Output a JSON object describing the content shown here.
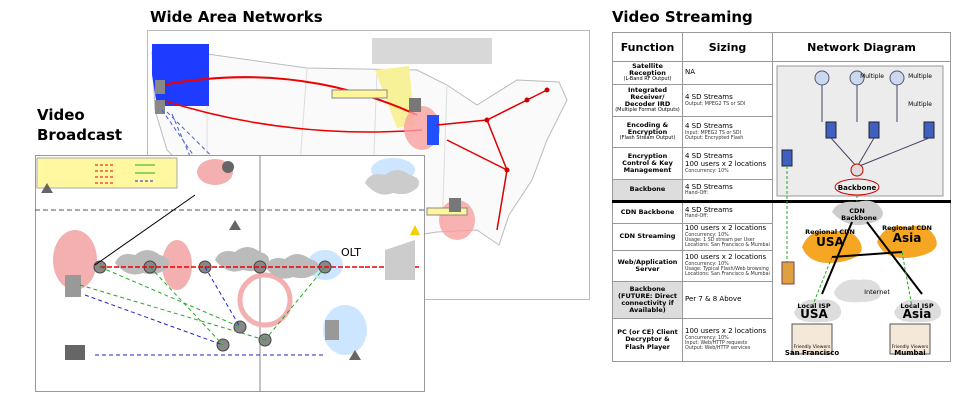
{
  "titles": {
    "wide_area_networks": "Wide Area Networks",
    "video_streaming": "Video Streaming",
    "video_broadcast": [
      "Video",
      "Broadcast"
    ]
  },
  "broadcast_diagram": {
    "labels": [
      "OLT"
    ]
  },
  "streaming_table": {
    "headers": [
      "Function",
      "Sizing",
      "Network Diagram"
    ],
    "rows": [
      {
        "function": "Satellite Reception",
        "note": "(L-Band RF Output)",
        "sizing": [
          "NA"
        ]
      },
      {
        "function": "Integrated Receiver/ Decoder IRD",
        "note": "(Multiple Format Outputs)",
        "sizing": [
          "4 SD Streams"
        ],
        "details": [
          "Output: MPEG2 TS or SDI"
        ]
      },
      {
        "function": "Encoding & Encryption",
        "note": "(Flash Stream Output)",
        "sizing": [
          "4 SD Streams"
        ],
        "details": [
          "Input: MPEG2 TS or SDI",
          "Output: Encrypted Flash"
        ]
      },
      {
        "function": "Encryption Control & Key Management",
        "sizing": [
          "4 SD Streams",
          "100 users x 2 locations"
        ],
        "details": [
          "Concurrency: 10%"
        ]
      },
      {
        "function": "Backbone",
        "sizing": [
          "4 SD Streams"
        ],
        "details": [
          "Hand-Off:"
        ]
      },
      {
        "function": "CDN Backbone",
        "sizing": [
          "4 SD Streams"
        ],
        "details": [
          "Hand-Off:"
        ]
      },
      {
        "function": "CDN Streaming",
        "sizing": [
          "100 users x 2 locations"
        ],
        "details": [
          "Concurrency: 10%",
          "Usage: 1 SD stream per User",
          "Locations: San Francisco & Mumbai"
        ]
      },
      {
        "function": "Web/Application Server",
        "sizing": [
          "100 users x 2 locations"
        ],
        "details": [
          "Concurrency: 10%",
          "Usage: Typical Flash/Web browsing",
          "Locations: San Francisco & Mumbai"
        ]
      },
      {
        "function": "Backbone (FUTURE: Direct connectivity if Available)",
        "sizing": [
          "Per 7 & 8 Above"
        ]
      },
      {
        "function": "PC (or CE) Client Decryptor & Flash Player",
        "sizing": [
          "100 users x 2 locations"
        ],
        "details": [
          "Concurrency: 10%",
          "Input: Web/HTTP requests",
          "Output: Web/HTTP services"
        ]
      }
    ]
  },
  "network_diagram": {
    "labels": [
      "Multiple",
      "Multiple",
      "Multiple",
      "Backbone",
      "CDN",
      "Backbone",
      "Regional CDN",
      "USA",
      "Regional CDN",
      "Asia",
      "Internet",
      "Local ISP",
      "USA",
      "Local ISP",
      "Asia",
      "Friendly Viewers",
      "San Francisco",
      "Friendly Viewers",
      "Mumbai"
    ]
  }
}
